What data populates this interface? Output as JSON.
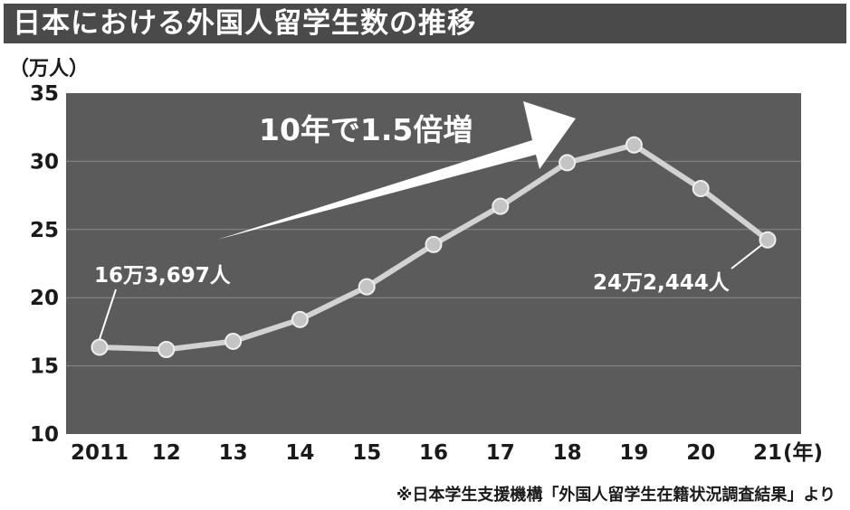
{
  "header": {
    "title": "日本における外国人留学生数の推移"
  },
  "chart_data": {
    "type": "line",
    "title": "日本における外国人留学生数の推移",
    "ylabel": "（万人）",
    "x_unit": "(年)",
    "categories": [
      "2011",
      "12",
      "13",
      "14",
      "15",
      "16",
      "17",
      "18",
      "19",
      "20",
      "21"
    ],
    "values": [
      16.37,
      16.2,
      16.8,
      18.4,
      20.8,
      23.9,
      26.7,
      29.9,
      31.2,
      28.0,
      24.24
    ],
    "ylim": [
      10,
      35
    ],
    "yticks": [
      10,
      15,
      20,
      25,
      30,
      35
    ],
    "grid": true,
    "legend": "none",
    "annotations": {
      "start_label": "16万3,697人",
      "end_label": "24万2,444人",
      "trend_label": "10年で1.5倍増"
    },
    "colors": {
      "plot_bg": "#5b5b5b",
      "line": "#d2d2d2",
      "marker": "#c4c4c4",
      "grid": "#8a8a8a",
      "title_bar": "#4a4a4a"
    }
  },
  "footer": {
    "source": "※日本学生支援機構「外国人留学生在籍状況調査結果」より"
  }
}
